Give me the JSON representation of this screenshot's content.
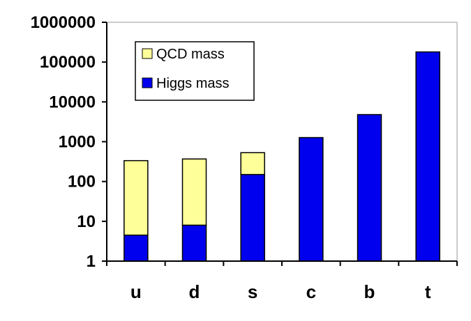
{
  "chart_data": {
    "type": "bar",
    "stacked": true,
    "yscale": "log",
    "ylim": [
      1,
      1000000
    ],
    "yticks": [
      "1",
      "10",
      "100",
      "1000",
      "10000",
      "100000",
      "1000000"
    ],
    "ytick_values": [
      1,
      10,
      100,
      1000,
      10000,
      100000,
      1000000
    ],
    "categories": [
      "u",
      "d",
      "s",
      "c",
      "b",
      "t"
    ],
    "series": [
      {
        "name": "Higgs mass",
        "color": "#0000ee",
        "values": [
          4.5,
          8,
          150,
          1270,
          4800,
          180000
        ]
      },
      {
        "name": "QCD mass",
        "color": "#ffff99",
        "values": [
          330,
          360,
          380,
          0,
          0,
          0
        ]
      }
    ],
    "legend_order": [
      "QCD mass",
      "Higgs mass"
    ],
    "legend_position": "top-left",
    "grid": false,
    "title": "",
    "xlabel": "",
    "ylabel": ""
  }
}
